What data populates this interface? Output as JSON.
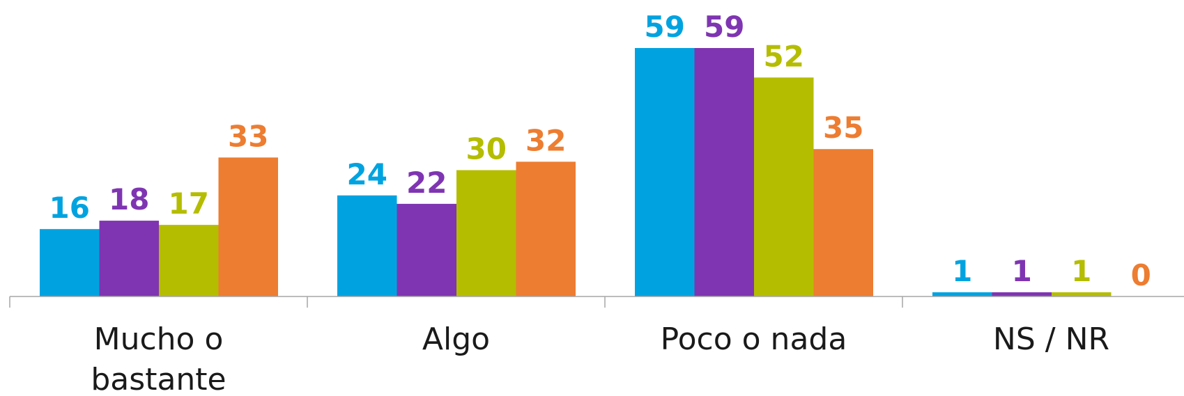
{
  "chart_data": {
    "type": "bar",
    "categories": [
      [
        "Mucho o",
        "bastante"
      ],
      [
        "Algo"
      ],
      [
        "Poco o nada"
      ],
      [
        "NS / NR"
      ]
    ],
    "series": [
      {
        "values": [
          16,
          24,
          59,
          1
        ],
        "color": "#00a3e0"
      },
      {
        "values": [
          18,
          22,
          59,
          1
        ],
        "color": "#7f35b2"
      },
      {
        "values": [
          17,
          30,
          52,
          1
        ],
        "color": "#b5bd00"
      },
      {
        "values": [
          33,
          32,
          35,
          0
        ],
        "color": "#ed7d31"
      }
    ],
    "ylim": [
      0,
      59
    ],
    "grid": false,
    "legend": "none",
    "axis_color": "#a6a6a6"
  }
}
